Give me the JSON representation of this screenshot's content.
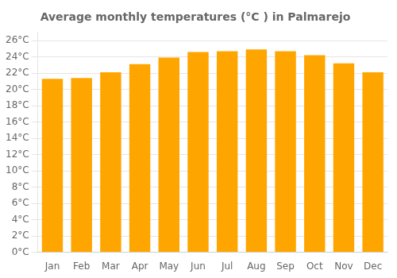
{
  "chart_data": {
    "type": "bar",
    "title": "Average monthly temperatures (°C ) in Palmarejo",
    "categories": [
      "Jan",
      "Feb",
      "Mar",
      "Apr",
      "May",
      "Jun",
      "Jul",
      "Aug",
      "Sep",
      "Oct",
      "Nov",
      "Dec"
    ],
    "values": [
      21.3,
      21.4,
      22.1,
      23.1,
      23.9,
      24.6,
      24.7,
      24.9,
      24.7,
      24.2,
      23.2,
      22.1
    ],
    "color": "#FFA500",
    "ylim": [
      0,
      27
    ],
    "yticks": [
      {
        "value": 0,
        "label": "0°C"
      },
      {
        "value": 2,
        "label": "2°C"
      },
      {
        "value": 4,
        "label": "4°C"
      },
      {
        "value": 6,
        "label": "6°C"
      },
      {
        "value": 8,
        "label": "8°C"
      },
      {
        "value": 10,
        "label": "10°C"
      },
      {
        "value": 12,
        "label": "12°C"
      },
      {
        "value": 14,
        "label": "14°C"
      },
      {
        "value": 16,
        "label": "16°C"
      },
      {
        "value": 18,
        "label": "18°C"
      },
      {
        "value": 20,
        "label": "20°C"
      },
      {
        "value": 22,
        "label": "22°C"
      },
      {
        "value": 24,
        "label": "24°C"
      },
      {
        "value": 26,
        "label": "26°C"
      }
    ],
    "grid": true
  }
}
